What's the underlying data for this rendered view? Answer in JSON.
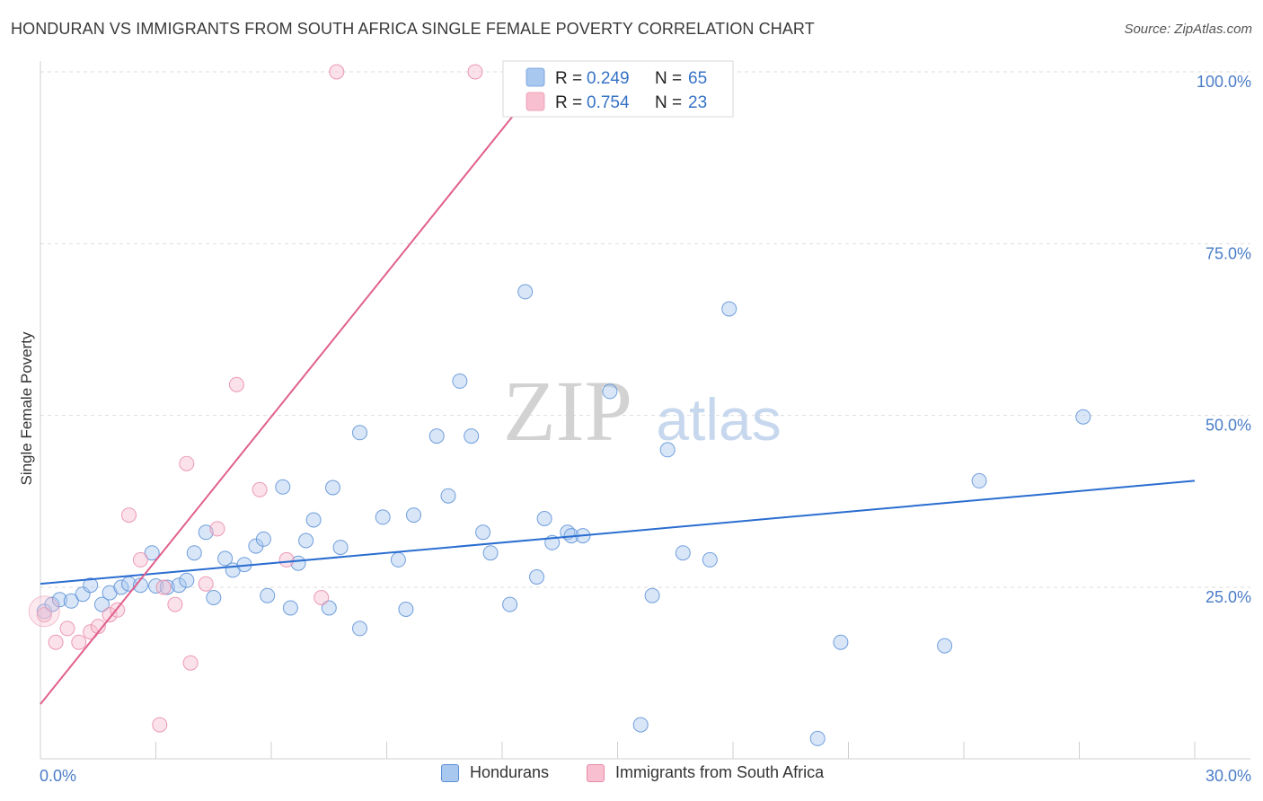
{
  "title": "HONDURAN VS IMMIGRANTS FROM SOUTH AFRICA SINGLE FEMALE POVERTY CORRELATION CHART",
  "source": "Source: ZipAtlas.com",
  "watermark": {
    "zip": "ZIP",
    "atlas": "atlas"
  },
  "colors": {
    "blue_fill": "#a9c8f0",
    "blue_stroke": "#5b8fd6",
    "blue_line": "#2a6dd0",
    "pink_fill": "#f7bfd0",
    "pink_stroke": "#e98aa8",
    "pink_line": "#e0608a",
    "tick_text": "#4a7cc7",
    "grid": "#dedede"
  },
  "legend_box": {
    "r_label": "R =",
    "n_label": "N =",
    "rows": [
      {
        "r": "0.249",
        "n": "65"
      },
      {
        "r": "0.754",
        "n": "23"
      }
    ]
  },
  "bottom_legend": [
    {
      "label": "Hondurans"
    },
    {
      "label": "Immigrants from South Africa"
    }
  ],
  "chart_data": {
    "type": "scatter",
    "title": "HONDURAN VS IMMIGRANTS FROM SOUTH AFRICA SINGLE FEMALE POVERTY CORRELATION CHART",
    "xlabel": "",
    "ylabel": "Single Female Poverty",
    "xlim": [
      0,
      30
    ],
    "ylim": [
      0,
      105
    ],
    "x_tick_labels": [
      {
        "value": 0,
        "label": "0.0%"
      },
      {
        "value": 30,
        "label": "30.0%"
      }
    ],
    "y_tick_labels": [
      {
        "value": 25,
        "label": "25.0%"
      },
      {
        "value": 50,
        "label": "50.0%"
      },
      {
        "value": 75,
        "label": "75.0%"
      },
      {
        "value": 100,
        "label": "100.0%"
      }
    ],
    "series": [
      {
        "name": "Hondurans",
        "r": 0.249,
        "n": 65,
        "trend": {
          "x": [
            0,
            30
          ],
          "y": [
            25.5,
            40.5
          ]
        },
        "points": [
          [
            0.1,
            21.5
          ],
          [
            0.3,
            22.5
          ],
          [
            0.5,
            23.2
          ],
          [
            0.8,
            23.0
          ],
          [
            1.1,
            24.0
          ],
          [
            1.3,
            25.3
          ],
          [
            1.6,
            22.5
          ],
          [
            1.8,
            24.2
          ],
          [
            2.1,
            25.0
          ],
          [
            2.3,
            25.5
          ],
          [
            2.6,
            25.3
          ],
          [
            2.9,
            30.0
          ],
          [
            3.0,
            25.2
          ],
          [
            3.3,
            25.0
          ],
          [
            3.6,
            25.3
          ],
          [
            3.8,
            26.0
          ],
          [
            4.0,
            30.0
          ],
          [
            4.3,
            33.0
          ],
          [
            4.5,
            23.5
          ],
          [
            4.8,
            29.2
          ],
          [
            5.0,
            27.5
          ],
          [
            5.3,
            28.3
          ],
          [
            5.6,
            31.0
          ],
          [
            5.8,
            32.0
          ],
          [
            5.9,
            23.8
          ],
          [
            6.3,
            39.6
          ],
          [
            6.5,
            22.0
          ],
          [
            6.7,
            28.5
          ],
          [
            6.9,
            31.8
          ],
          [
            7.1,
            34.8
          ],
          [
            7.5,
            22.0
          ],
          [
            7.6,
            39.5
          ],
          [
            7.8,
            30.8
          ],
          [
            8.3,
            19.0
          ],
          [
            8.3,
            47.5
          ],
          [
            8.9,
            35.2
          ],
          [
            9.3,
            29.0
          ],
          [
            9.5,
            21.8
          ],
          [
            9.7,
            35.5
          ],
          [
            10.3,
            47.0
          ],
          [
            10.6,
            38.3
          ],
          [
            10.9,
            55.0
          ],
          [
            11.2,
            47.0
          ],
          [
            11.5,
            33.0
          ],
          [
            11.7,
            30.0
          ],
          [
            12.2,
            22.5
          ],
          [
            12.6,
            68.0
          ],
          [
            12.9,
            26.5
          ],
          [
            13.1,
            35.0
          ],
          [
            13.3,
            31.5
          ],
          [
            13.7,
            33.0
          ],
          [
            13.8,
            32.5
          ],
          [
            14.1,
            32.5
          ],
          [
            14.8,
            53.5
          ],
          [
            15.6,
            5.0
          ],
          [
            15.9,
            23.8
          ],
          [
            16.3,
            45.0
          ],
          [
            16.7,
            30.0
          ],
          [
            17.4,
            29.0
          ],
          [
            17.9,
            65.5
          ],
          [
            20.8,
            17.0
          ],
          [
            23.5,
            16.5
          ],
          [
            24.4,
            40.5
          ],
          [
            27.1,
            49.8
          ],
          [
            20.2,
            3.0
          ]
        ]
      },
      {
        "name": "Immigrants from South Africa",
        "r": 0.754,
        "n": 23,
        "trend": {
          "x": [
            0,
            13.2
          ],
          "y": [
            8.0,
            100
          ]
        },
        "points": [
          [
            0.1,
            21.0
          ],
          [
            0.4,
            17.0
          ],
          [
            0.7,
            19.0
          ],
          [
            1.0,
            17.0
          ],
          [
            1.3,
            18.5
          ],
          [
            1.5,
            19.3
          ],
          [
            1.8,
            21.0
          ],
          [
            2.0,
            21.7
          ],
          [
            2.3,
            35.5
          ],
          [
            2.6,
            29.0
          ],
          [
            3.1,
            5.0
          ],
          [
            3.2,
            25.0
          ],
          [
            3.5,
            22.5
          ],
          [
            3.8,
            43.0
          ],
          [
            3.9,
            14.0
          ],
          [
            4.3,
            25.5
          ],
          [
            4.6,
            33.5
          ],
          [
            5.1,
            54.5
          ],
          [
            5.7,
            39.2
          ],
          [
            6.4,
            29.0
          ],
          [
            7.3,
            23.5
          ],
          [
            7.7,
            100
          ],
          [
            11.3,
            100
          ]
        ]
      }
    ]
  }
}
